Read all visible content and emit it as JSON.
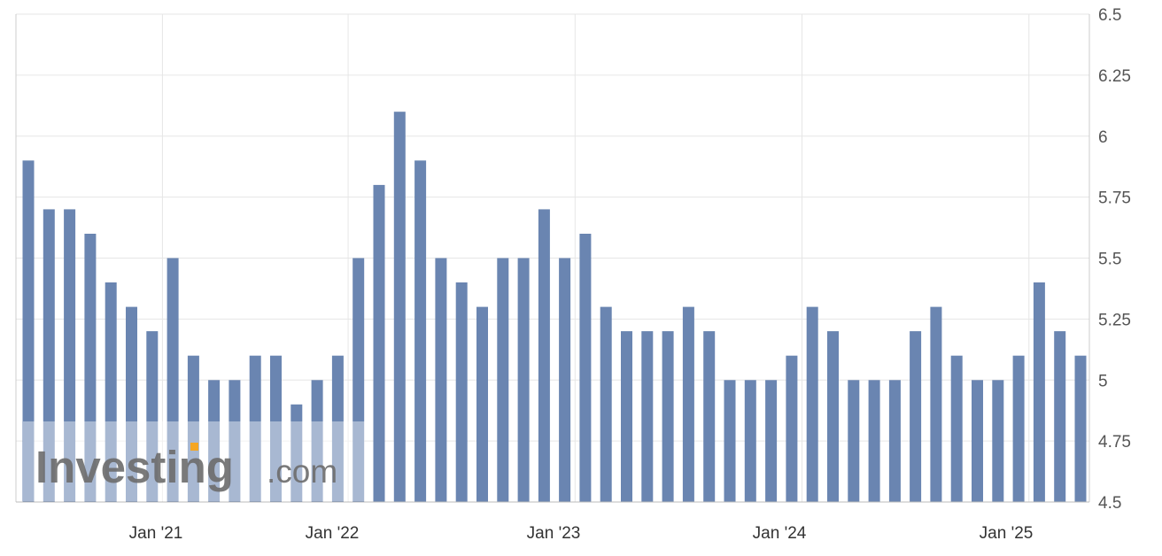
{
  "chart_data": {
    "type": "bar",
    "title": "",
    "xlabel": "",
    "ylabel": "",
    "ylim": [
      4.5,
      6.5
    ],
    "y_axis_position": "right",
    "y_ticks": [
      "4.5",
      "4.75",
      "5",
      "5.25",
      "5.5",
      "5.75",
      "6",
      "6.25",
      "6.5"
    ],
    "x_tick_labels": [
      "Jan '21",
      "Jan '22",
      "Jan '23",
      "Jan '24",
      "Jan '25"
    ],
    "grid": true,
    "series": [
      {
        "values": [
          5.9,
          5.7,
          5.7,
          5.6,
          5.4,
          5.3,
          5.2,
          5.5,
          5.1,
          5.0,
          5.0,
          5.1,
          5.1,
          4.9,
          5.0,
          5.1,
          5.5,
          5.8,
          6.1,
          5.9,
          5.5,
          5.4,
          5.3,
          5.5,
          5.5,
          5.7,
          5.5,
          5.6,
          5.3,
          5.2,
          5.2,
          5.2,
          5.3,
          5.2,
          5.0,
          5.0,
          5.0,
          5.1,
          5.3,
          5.2,
          5.0,
          5.0,
          5.0,
          5.2,
          5.3,
          5.1,
          5.0,
          5.0,
          5.1,
          5.4,
          5.2,
          5.1
        ]
      }
    ],
    "colors": {
      "bar": "#6a85b1",
      "grid": "#e6e6e6",
      "axis": "#cccccc"
    }
  },
  "watermark": {
    "brand_text": "Investing",
    "suffix_text": ".com"
  }
}
